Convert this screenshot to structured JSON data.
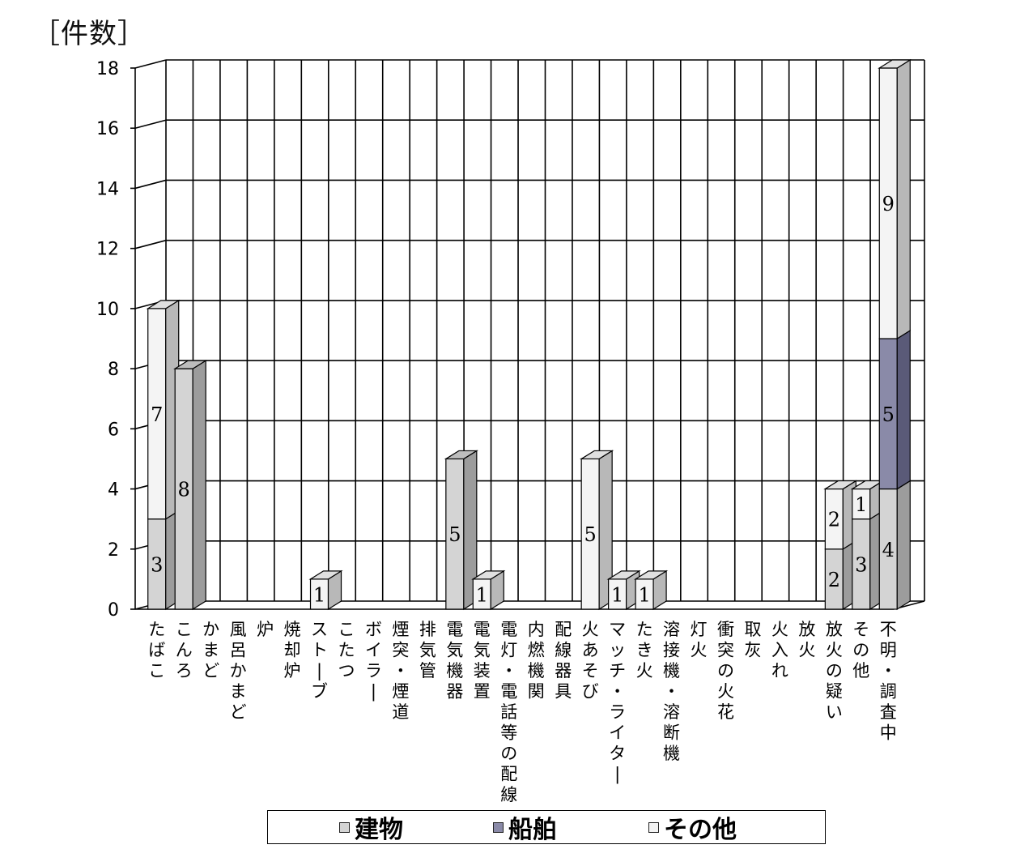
{
  "chart_data": {
    "type": "bar",
    "stacked": true,
    "ylabel": "［件数］",
    "ylim": [
      0,
      18
    ],
    "yticks": [
      "0",
      "2",
      "4",
      "6",
      "8",
      "10",
      "12",
      "14",
      "16",
      "18"
    ],
    "grid": true,
    "legend_position": "bottom",
    "categories": [
      "たばこ",
      "こんろ",
      "かまど",
      "風呂かまど",
      "炉",
      "焼却炉",
      "ストーブ",
      "こたつ",
      "ボイラー",
      "煙突・煙道",
      "排気管",
      "電気機器",
      "電気装置",
      "電灯・電話等の配線",
      "内燃機関",
      "配線器具",
      "火あそび",
      "マッチ・ライター",
      "たき火",
      "溶接機・溶断機",
      "灯火",
      "衝突の火花",
      "取灰",
      "火入れ",
      "放火",
      "放火の疑い",
      "その他",
      "不明・調査中"
    ],
    "groups": [
      {
        "series": [
          {
            "name": "建物",
            "value": 3
          },
          {
            "name": "その他",
            "value": 7
          }
        ]
      },
      {
        "series": [
          {
            "name": "建物",
            "value": 8
          }
        ]
      },
      {
        "series": []
      },
      {
        "series": []
      },
      {
        "series": []
      },
      {
        "series": []
      },
      {
        "series": [
          {
            "name": "その他",
            "value": 1
          }
        ]
      },
      {
        "series": []
      },
      {
        "series": []
      },
      {
        "series": []
      },
      {
        "series": []
      },
      {
        "series": [
          {
            "name": "建物",
            "value": 5
          }
        ]
      },
      {
        "series": [
          {
            "name": "その他",
            "value": 1
          }
        ]
      },
      {
        "series": []
      },
      {
        "series": []
      },
      {
        "series": []
      },
      {
        "series": [
          {
            "name": "その他",
            "value": 5
          }
        ]
      },
      {
        "series": [
          {
            "name": "その他",
            "value": 1
          }
        ]
      },
      {
        "series": [
          {
            "name": "その他",
            "value": 1
          }
        ]
      },
      {
        "series": []
      },
      {
        "series": []
      },
      {
        "series": []
      },
      {
        "series": []
      },
      {
        "series": []
      },
      {
        "series": []
      },
      {
        "series": [
          {
            "name": "建物",
            "value": 2
          },
          {
            "name": "その他",
            "value": 2
          }
        ]
      },
      {
        "series": [
          {
            "name": "建物",
            "value": 3
          },
          {
            "name": "その他",
            "value": 1
          }
        ]
      },
      {
        "series": [
          {
            "name": "建物",
            "value": 4
          },
          {
            "name": "船舶",
            "value": 5
          },
          {
            "name": "その他",
            "value": 9
          }
        ]
      }
    ],
    "legend": [
      {
        "name": "建物",
        "color": "#d4d4d4"
      },
      {
        "name": "船舶",
        "color": "#8a8aa8"
      },
      {
        "name": "その他",
        "color": "#f4f4f4"
      }
    ]
  }
}
